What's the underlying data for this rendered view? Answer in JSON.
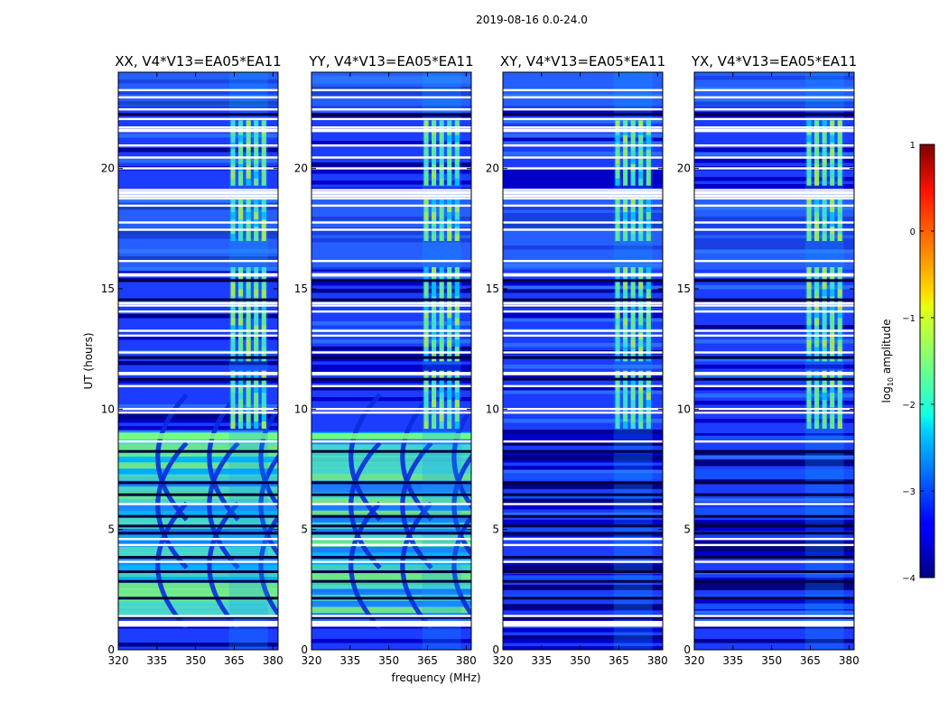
{
  "chart_data": {
    "type": "heatmap",
    "title": "2019-08-16 0.0-24.0",
    "xlabel": "frequency (MHz)",
    "ylabel": "UT (hours)",
    "xlim": [
      320,
      382
    ],
    "ylim": [
      0,
      24
    ],
    "xticks": [
      "320",
      "335",
      "350",
      "365",
      "380"
    ],
    "xtick_values": [
      320,
      335,
      350,
      365,
      380
    ],
    "yticks": [
      "0",
      "5",
      "10",
      "15",
      "20"
    ],
    "ytick_values": [
      0,
      5,
      10,
      15,
      20
    ],
    "panels": [
      {
        "title": "XX, V4*V13=EA05*EA11",
        "pol": "parallel"
      },
      {
        "title": "YY, V4*V13=EA05*EA11",
        "pol": "parallel"
      },
      {
        "title": "XY, V4*V13=EA05*EA11",
        "pol": "cross"
      },
      {
        "title": "YX, V4*V13=EA05*EA11",
        "pol": "cross"
      }
    ],
    "colorbar": {
      "label": "log",
      "label_sub": "10",
      "label_suffix": " amplitude",
      "range": [
        -4,
        1
      ],
      "tick_values": [
        1,
        0,
        -1,
        -2,
        -3,
        -4
      ],
      "tick_labels": [
        "1",
        "0",
        "−1",
        "−2",
        "−3",
        "−4"
      ],
      "colormap": "jet"
    },
    "flagged_hours": [
      1.05,
      1.1,
      1.15,
      1.2,
      1.45,
      3.7,
      4.4,
      4.65,
      6.1,
      8.7,
      9.9,
      10.05,
      11.0,
      11.5,
      11.55,
      12.4,
      13.1,
      13.3,
      14.1,
      14.35,
      14.45,
      15.6,
      15.65,
      16.2,
      17.5,
      17.8,
      18.5,
      18.8,
      18.9,
      19.0,
      19.05,
      19.15,
      20.05,
      20.5,
      21.0,
      21.6,
      21.65,
      21.75,
      22.1,
      22.5,
      23.0,
      23.3
    ],
    "rfi_band_mhz": [
      363,
      378
    ],
    "rfi_hours": [
      [
        9.2,
        11.6
      ],
      [
        12.0,
        15.7
      ],
      [
        17.0,
        18.7
      ],
      [
        19.3,
        21.9
      ]
    ]
  }
}
